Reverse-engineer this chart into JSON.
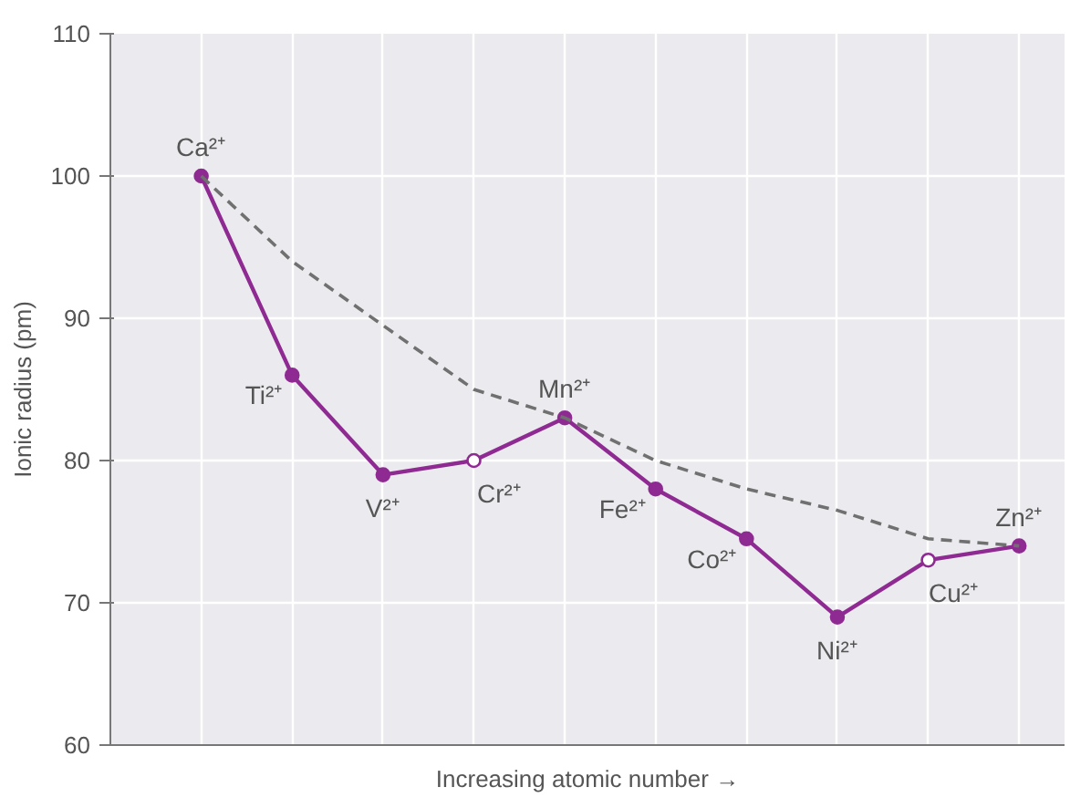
{
  "chart_data": {
    "type": "line",
    "xlabel": "Increasing atomic number →",
    "ylabel": "Ionic radius (pm)",
    "categories": [
      null,
      null,
      null,
      null,
      null,
      null,
      null,
      null,
      null,
      null
    ],
    "ylim": [
      60,
      110
    ],
    "yticks": [
      60,
      70,
      80,
      90,
      100,
      110
    ],
    "tick_labels": "y",
    "grid": true,
    "marker": "circle",
    "line_style": "solid",
    "series": [
      {
        "color": "#8e2a92",
        "colors": [
          "#8e2a92",
          "#8e2a92",
          "#8e2a92",
          "#ffffff",
          "#8e2a92",
          "#8e2a92",
          "#8e2a92",
          "#8e2a92",
          "#ffffff",
          "#8e2a92"
        ],
        "values": [
          100,
          86,
          79,
          80,
          83,
          78,
          74.5,
          69,
          73,
          74
        ]
      },
      {
        "color": "#707070",
        "line_style": "dashed",
        "marker": "none",
        "values": [
          100,
          94,
          89.5,
          85,
          83,
          80,
          78,
          76.5,
          74.5,
          74
        ]
      }
    ],
    "annotations": [
      "Ca²⁺",
      "Ti²⁺",
      "V²⁺",
      "Cr²⁺",
      "Mn²⁺",
      "Fe²⁺",
      "Co²⁺",
      "Ni²⁺",
      "Cu²⁺",
      "Zn²⁺"
    ]
  }
}
